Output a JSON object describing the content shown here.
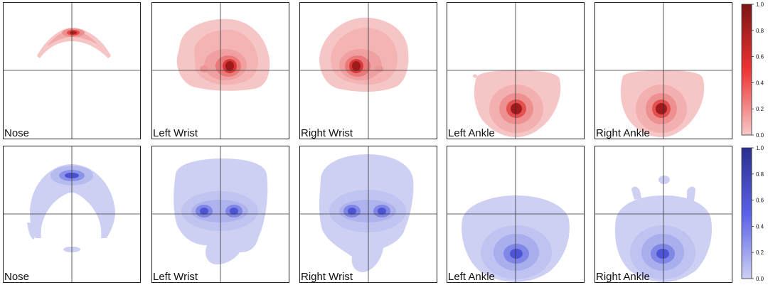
{
  "chart_data": [
    {
      "type": "heatmap",
      "title": "",
      "row": "top",
      "colormap": "Reds",
      "panels": [
        "Nose",
        "Left Wrist",
        "Right Wrist",
        "Left Ankle",
        "Right Ankle"
      ],
      "colorbar": {
        "min": 0.0,
        "max": 1.0,
        "ticks": [
          "0.0",
          "0.2",
          "0.4",
          "0.6",
          "0.8",
          "1.0"
        ]
      },
      "colors": {
        "low": "#f7c8c8",
        "mid": "#ee3333",
        "high": "#7d1515"
      }
    },
    {
      "type": "heatmap",
      "title": "",
      "row": "bottom",
      "colormap": "Blues",
      "panels": [
        "Nose",
        "Left Wrist",
        "Right Wrist",
        "Left Ankle",
        "Right Ankle"
      ],
      "colorbar": {
        "min": 0.0,
        "max": 1.0,
        "ticks": [
          "0.0",
          "0.2",
          "0.4",
          "0.6",
          "0.8",
          "1.0"
        ]
      },
      "colors": {
        "low": "#cdd0f3",
        "mid": "#5a60e8",
        "high": "#2a2f8f"
      }
    }
  ]
}
